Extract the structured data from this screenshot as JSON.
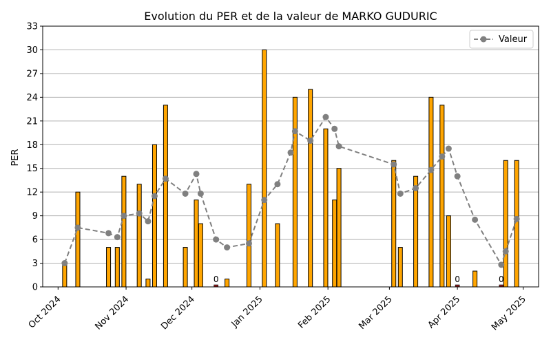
{
  "chart_data": {
    "type": "bar+line",
    "title": "Evolution du PER et de la valeur de MARKO GUDURIC",
    "ylabel": "PER",
    "xlabel": "",
    "ylim": [
      0,
      33
    ],
    "yticks": [
      0,
      3,
      6,
      9,
      12,
      15,
      18,
      21,
      24,
      27,
      30,
      33
    ],
    "xlim": [
      "2024-09-24",
      "2025-05-08"
    ],
    "xticks": [
      {
        "date": "2024-10-01",
        "label": "Oct 2024"
      },
      {
        "date": "2024-11-01",
        "label": "Nov 2024"
      },
      {
        "date": "2024-12-01",
        "label": "Dec 2024"
      },
      {
        "date": "2025-01-01",
        "label": "Jan 2025"
      },
      {
        "date": "2025-02-01",
        "label": "Feb 2025"
      },
      {
        "date": "2025-03-01",
        "label": "Mar 2025"
      },
      {
        "date": "2025-04-01",
        "label": "Apr 2025"
      },
      {
        "date": "2025-05-01",
        "label": "May 2025"
      }
    ],
    "grid": "horizontal",
    "legend": {
      "position": "top-right",
      "entries": [
        "Valeur"
      ]
    },
    "bar_color": "#FFA500",
    "bar_zero_color": "#8B1A1A",
    "line_color": "#808080",
    "bars": [
      {
        "date": "2024-10-04",
        "value": 3
      },
      {
        "date": "2024-10-10",
        "value": 12
      },
      {
        "date": "2024-10-24",
        "value": 5
      },
      {
        "date": "2024-10-28",
        "value": 5
      },
      {
        "date": "2024-10-31",
        "value": 14
      },
      {
        "date": "2024-11-07",
        "value": 13
      },
      {
        "date": "2024-11-11",
        "value": 1
      },
      {
        "date": "2024-11-14",
        "value": 18
      },
      {
        "date": "2024-11-19",
        "value": 23
      },
      {
        "date": "2024-11-28",
        "value": 5
      },
      {
        "date": "2024-12-03",
        "value": 11
      },
      {
        "date": "2024-12-05",
        "value": 8
      },
      {
        "date": "2024-12-12",
        "value": 0,
        "label": "0"
      },
      {
        "date": "2024-12-17",
        "value": 1
      },
      {
        "date": "2024-12-27",
        "value": 13
      },
      {
        "date": "2025-01-03",
        "value": 30
      },
      {
        "date": "2025-01-09",
        "value": 8
      },
      {
        "date": "2025-01-17",
        "value": 24
      },
      {
        "date": "2025-01-24",
        "value": 25
      },
      {
        "date": "2025-01-31",
        "value": 20
      },
      {
        "date": "2025-02-04",
        "value": 11
      },
      {
        "date": "2025-02-06",
        "value": 15
      },
      {
        "date": "2025-03-03",
        "value": 16
      },
      {
        "date": "2025-03-06",
        "value": 5
      },
      {
        "date": "2025-03-13",
        "value": 14
      },
      {
        "date": "2025-03-20",
        "value": 24
      },
      {
        "date": "2025-03-25",
        "value": 23
      },
      {
        "date": "2025-03-28",
        "value": 9
      },
      {
        "date": "2025-04-01",
        "value": 0,
        "label": "0"
      },
      {
        "date": "2025-04-09",
        "value": 2
      },
      {
        "date": "2025-04-21",
        "value": 0,
        "label": "0"
      },
      {
        "date": "2025-04-23",
        "value": 16
      },
      {
        "date": "2025-04-28",
        "value": 16
      }
    ],
    "series": [
      {
        "name": "Valeur",
        "points": [
          {
            "date": "2024-10-04",
            "value": 3.0
          },
          {
            "date": "2024-10-10",
            "value": 7.5
          },
          {
            "date": "2024-10-24",
            "value": 6.8
          },
          {
            "date": "2024-10-28",
            "value": 6.3
          },
          {
            "date": "2024-10-31",
            "value": 9.0
          },
          {
            "date": "2024-11-07",
            "value": 9.3
          },
          {
            "date": "2024-11-11",
            "value": 8.3
          },
          {
            "date": "2024-11-14",
            "value": 11.5
          },
          {
            "date": "2024-11-19",
            "value": 13.7
          },
          {
            "date": "2024-11-28",
            "value": 11.8
          },
          {
            "date": "2024-12-03",
            "value": 14.3
          },
          {
            "date": "2024-12-05",
            "value": 11.8
          },
          {
            "date": "2024-12-12",
            "value": 6.0
          },
          {
            "date": "2024-12-17",
            "value": 5.0
          },
          {
            "date": "2024-12-27",
            "value": 5.5
          },
          {
            "date": "2025-01-03",
            "value": 11.0
          },
          {
            "date": "2025-01-09",
            "value": 13.0
          },
          {
            "date": "2025-01-15",
            "value": 17.0
          },
          {
            "date": "2025-01-17",
            "value": 19.7
          },
          {
            "date": "2025-01-24",
            "value": 18.5
          },
          {
            "date": "2025-01-31",
            "value": 21.5
          },
          {
            "date": "2025-02-04",
            "value": 20.0
          },
          {
            "date": "2025-02-06",
            "value": 17.8
          },
          {
            "date": "2025-03-03",
            "value": 15.5
          },
          {
            "date": "2025-03-06",
            "value": 11.8
          },
          {
            "date": "2025-03-13",
            "value": 12.5
          },
          {
            "date": "2025-03-20",
            "value": 14.8
          },
          {
            "date": "2025-03-25",
            "value": 16.5
          },
          {
            "date": "2025-03-28",
            "value": 17.5
          },
          {
            "date": "2025-04-01",
            "value": 14.0
          },
          {
            "date": "2025-04-09",
            "value": 8.5
          },
          {
            "date": "2025-04-21",
            "value": 2.8
          },
          {
            "date": "2025-04-23",
            "value": 4.5
          },
          {
            "date": "2025-04-28",
            "value": 8.6
          }
        ]
      }
    ]
  }
}
